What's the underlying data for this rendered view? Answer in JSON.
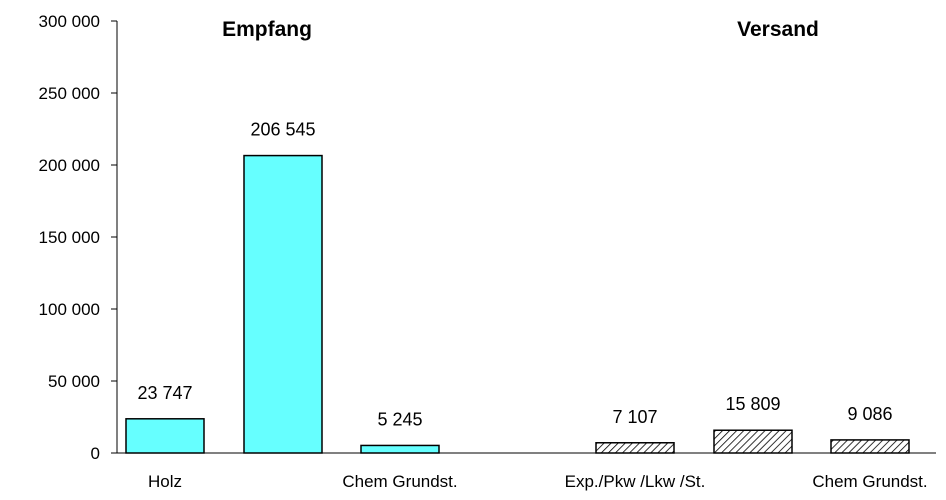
{
  "chart_data": {
    "type": "bar",
    "ylim": [
      0,
      300000
    ],
    "yticks": [
      0,
      50000,
      100000,
      150000,
      200000,
      250000,
      300000
    ],
    "ytick_labels": [
      "0",
      "50 000",
      "100 000",
      "150 000",
      "200 000",
      "250 000",
      "300 000"
    ],
    "grid": false,
    "legend": "none",
    "groups": [
      {
        "title": "Empfang",
        "fill": "solid",
        "color": "#66FFFF",
        "bars": [
          {
            "category": "Holz",
            "value": 23747,
            "label": "23 747"
          },
          {
            "category": "",
            "value": 206545,
            "label": "206 545"
          },
          {
            "category": "Chem Grundst.",
            "value": 5245,
            "label": "5 245"
          }
        ]
      },
      {
        "title": "Versand",
        "fill": "hatched",
        "color": "#FFFFFF",
        "bars": [
          {
            "category": "Exp./Pkw /Lkw /St.",
            "value": 7107,
            "label": "7 107"
          },
          {
            "category": "",
            "value": 15809,
            "label": "15 809"
          },
          {
            "category": "Chem Grundst.",
            "value": 9086,
            "label": "9 086"
          }
        ]
      }
    ]
  }
}
